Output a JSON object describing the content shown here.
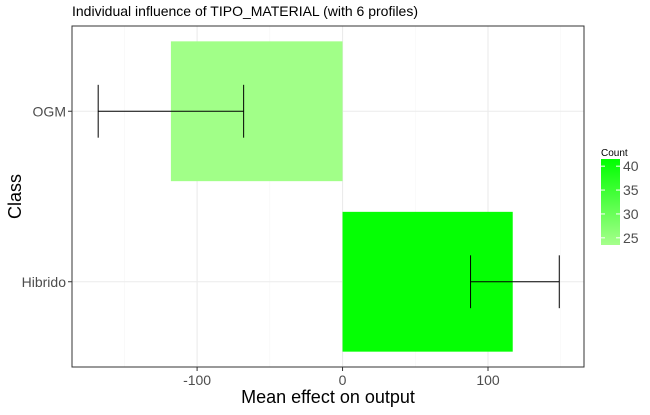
{
  "chart_data": {
    "type": "bar",
    "orientation": "horizontal",
    "title": "Individual influence of TIPO_MATERIAL (with 6 profiles)",
    "xlabel": "Mean effect on output",
    "ylabel": "Class",
    "xlim": [
      -186,
      166
    ],
    "x_ticks": [
      -100,
      0,
      100
    ],
    "x_tick_labels": [
      "-100",
      "0",
      "100"
    ],
    "grid": true,
    "categories": [
      "OGM",
      "Hibrido"
    ],
    "bars": [
      {
        "category": "OGM",
        "value": -118,
        "count": 24,
        "error_low": -168,
        "error_high": -68
      },
      {
        "category": "Hibrido",
        "value": 117,
        "count": 41,
        "error_low": 88,
        "error_high": 149
      }
    ],
    "legend": {
      "title": "Count",
      "position": "right",
      "min": 23.5,
      "max": 41.5,
      "low_color": "#A6FF8C",
      "high_color": "#00FF00",
      "ticks": [
        25,
        30,
        35,
        40
      ],
      "tick_labels": [
        "25",
        "30",
        "35",
        "40"
      ]
    },
    "colors": {
      "panel_border": "#333333",
      "grid_major": "#EBEBEB",
      "grid_minor": "#F5F5F5",
      "axis_text": "#4D4D4D",
      "error_bar": "#000000"
    }
  }
}
